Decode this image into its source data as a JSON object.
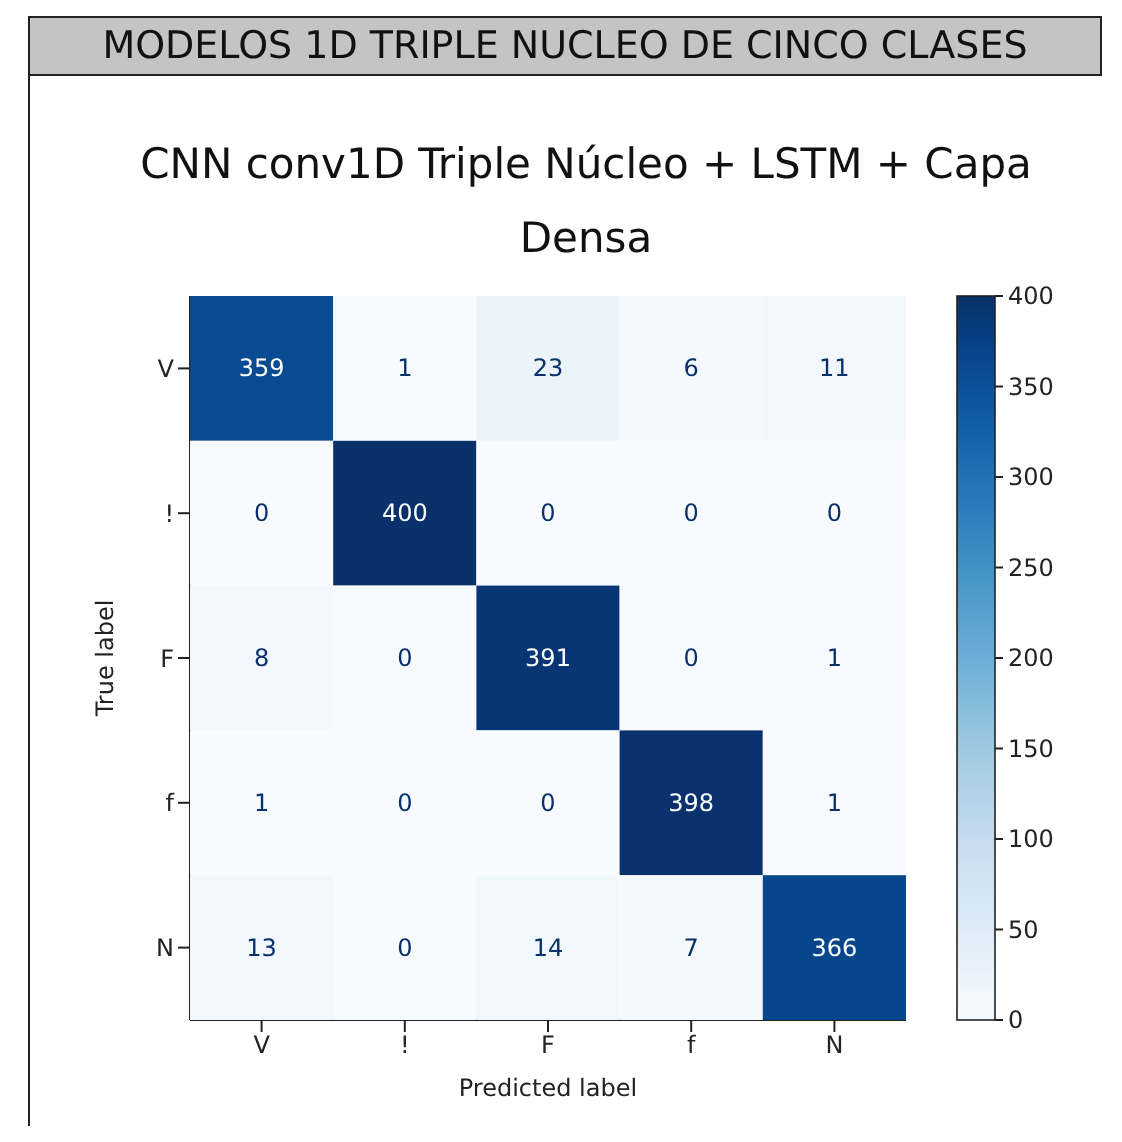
{
  "chart_data": {
    "type": "heatmap",
    "title": "MODELOS 1D TRIPLE NUCLEO DE CINCO CLASES",
    "subtitle": "CNN conv1D Triple Núcleo + LSTM + Capa Densa",
    "xlabel": "Predicted label",
    "ylabel": "True label",
    "categories": [
      "V",
      "!",
      "F",
      "f",
      "N"
    ],
    "y_categories": [
      "V",
      "!",
      "F",
      "f",
      "N"
    ],
    "cells": [
      [
        359,
        1,
        23,
        6,
        11
      ],
      [
        0,
        400,
        0,
        0,
        0
      ],
      [
        8,
        0,
        391,
        0,
        1
      ],
      [
        1,
        0,
        0,
        398,
        1
      ],
      [
        13,
        0,
        14,
        7,
        366
      ]
    ],
    "data_labels": true,
    "clim": [
      0,
      400
    ],
    "cticks": [
      0,
      50,
      100,
      150,
      200,
      250,
      300,
      350,
      400
    ]
  }
}
